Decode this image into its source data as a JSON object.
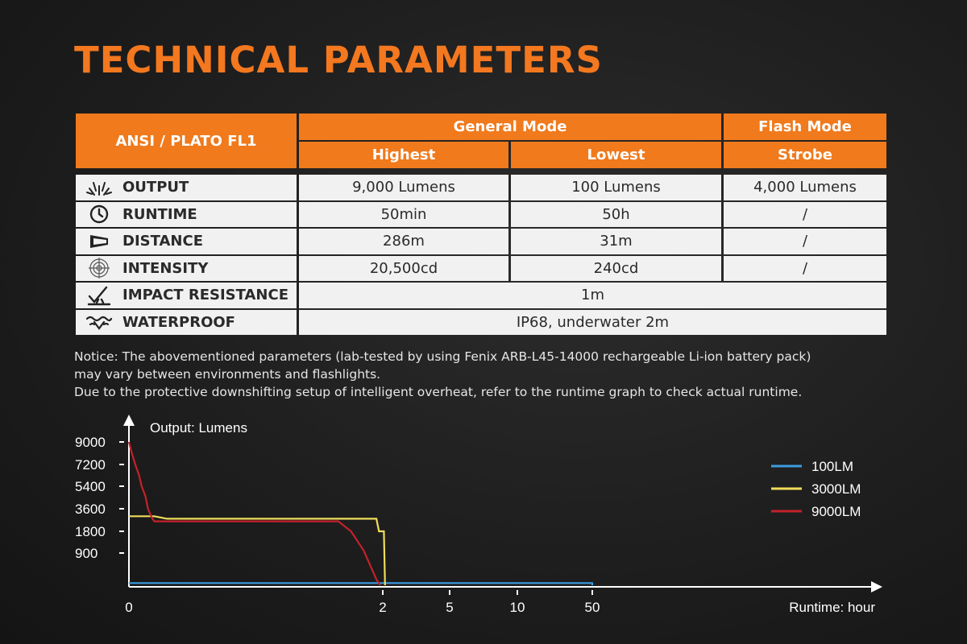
{
  "title": "TECHNICAL PARAMETERS",
  "header": {
    "standard": "ANSI / PLATO FL1",
    "general_mode": "General Mode",
    "flash_mode": "Flash Mode",
    "highest": "Highest",
    "lowest": "Lowest",
    "strobe": "Strobe"
  },
  "rows": [
    {
      "icon": "sunburst-icon",
      "label": "OUTPUT",
      "highest": "9,000 Lumens",
      "lowest": "100 Lumens",
      "strobe": "4,000 Lumens"
    },
    {
      "icon": "clock-icon",
      "label": "RUNTIME",
      "highest": "50min",
      "lowest": "50h",
      "strobe": "/"
    },
    {
      "icon": "beam-icon",
      "label": "DISTANCE",
      "highest": "286m",
      "lowest": "31m",
      "strobe": "/"
    },
    {
      "icon": "target-icon",
      "label": "INTENSITY",
      "highest": "20,500cd",
      "lowest": "240cd",
      "strobe": "/"
    },
    {
      "icon": "impact-icon",
      "label": "IMPACT RESISTANCE",
      "value": "1m"
    },
    {
      "icon": "waterproof-icon",
      "label": "WATERPROOF",
      "value": "IP68, underwater 2m"
    }
  ],
  "notice": [
    "Notice: The abovementioned parameters (lab-tested by using Fenix ARB-L45-14000 rechargeable Li-ion battery pack)",
    "may vary between environments and flashlights.",
    "Due to the protective downshifting setup of intelligent overheat, refer to the runtime graph to check actual runtime."
  ],
  "colors": {
    "accent": "#f07a1c",
    "series_100": "#3d9be0",
    "series_3000": "#f0dc5a",
    "series_9000": "#c3222a"
  },
  "chart_data": {
    "type": "line",
    "ylabel": "Output: Lumens",
    "xlabel": "Runtime: hour",
    "y_ticks": [
      "9000",
      "7200",
      "5400",
      "3600",
      "1800",
      "900"
    ],
    "x_ticks": [
      "0",
      "2",
      "5",
      "10",
      "50"
    ],
    "legend_position": "right",
    "x_scale": "nonlinear (compressed)",
    "series": [
      {
        "name": "100LM",
        "points": [
          [
            0,
            100
          ],
          [
            50,
            100
          ],
          [
            50,
            0
          ]
        ]
      },
      {
        "name": "3000LM",
        "points": [
          [
            0,
            3000
          ],
          [
            0.2,
            3000
          ],
          [
            0.3,
            2800
          ],
          [
            1.95,
            2800
          ],
          [
            1.97,
            1800
          ],
          [
            2.05,
            1800
          ],
          [
            2.1,
            0
          ]
        ]
      },
      {
        "name": "9000LM",
        "points": [
          [
            0,
            9000
          ],
          [
            0.02,
            8200
          ],
          [
            0.05,
            7200
          ],
          [
            0.08,
            6300
          ],
          [
            0.1,
            5400
          ],
          [
            0.13,
            4600
          ],
          [
            0.15,
            3600
          ],
          [
            0.18,
            2900
          ],
          [
            0.2,
            2600
          ],
          [
            1.65,
            2600
          ],
          [
            1.75,
            1800
          ],
          [
            1.85,
            1000
          ],
          [
            1.95,
            200
          ],
          [
            1.98,
            0
          ]
        ]
      }
    ]
  }
}
